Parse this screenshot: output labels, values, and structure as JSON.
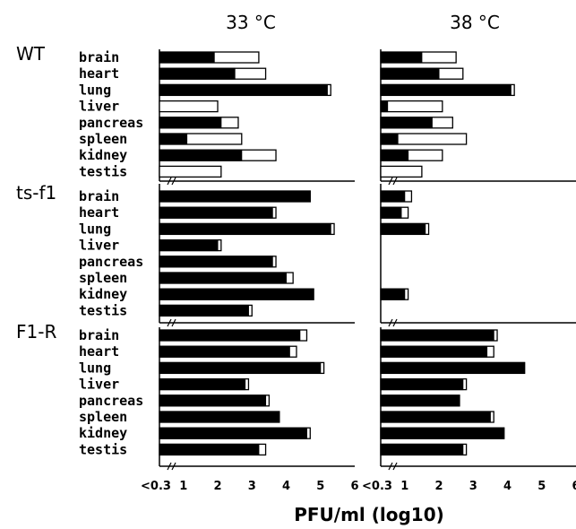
{
  "chart_data": {
    "type": "bar",
    "orientation": "horizontal",
    "xlabel": "PFU/ml (log10)",
    "x_min_label": "<0.3",
    "x_tick_labels": [
      "<0.3",
      "1",
      "2",
      "3",
      "4",
      "5",
      "6"
    ],
    "xlim": [
      0.3,
      6
    ],
    "axis_break": true,
    "conditions": [
      "33 °C",
      "38 °C"
    ],
    "categories": [
      "brain",
      "heart",
      "lung",
      "liver",
      "pancreas",
      "spleen",
      "kidney",
      "testis"
    ],
    "encoding": "each bar: black segment shows mean, white extension up to mean + error",
    "colors": {
      "mean": "#000000",
      "error": "#ffffff",
      "outline": "#000000"
    },
    "groups": [
      {
        "name": "WT",
        "panels": [
          {
            "condition": "33 °C",
            "mean": [
              1.9,
              2.5,
              5.2,
              0.3,
              2.1,
              1.1,
              2.7,
              0.3
            ],
            "upper": [
              3.2,
              3.4,
              5.3,
              2.0,
              2.6,
              2.7,
              3.7,
              2.1
            ]
          },
          {
            "condition": "38 °C",
            "mean": [
              1.5,
              2.0,
              4.1,
              0.5,
              1.8,
              0.8,
              1.1,
              0.3
            ],
            "upper": [
              2.5,
              2.7,
              4.2,
              2.1,
              2.4,
              2.8,
              2.1,
              1.5
            ]
          }
        ]
      },
      {
        "name": "ts-f1",
        "panels": [
          {
            "condition": "33 °C",
            "mean": [
              4.7,
              3.6,
              5.3,
              2.0,
              3.6,
              4.0,
              4.8,
              2.9
            ],
            "upper": [
              4.7,
              3.7,
              5.4,
              2.1,
              3.7,
              4.2,
              4.8,
              3.0
            ]
          },
          {
            "condition": "38 °C",
            "mean": [
              1.0,
              0.9,
              1.6,
              null,
              null,
              null,
              1.0,
              null
            ],
            "upper": [
              1.2,
              1.1,
              1.7,
              null,
              null,
              null,
              1.1,
              null
            ]
          }
        ]
      },
      {
        "name": "F1-R",
        "panels": [
          {
            "condition": "33 °C",
            "mean": [
              4.4,
              4.1,
              5.0,
              2.8,
              3.4,
              3.8,
              4.6,
              3.2
            ],
            "upper": [
              4.6,
              4.3,
              5.1,
              2.9,
              3.5,
              3.8,
              4.7,
              3.4
            ]
          },
          {
            "condition": "38 °C",
            "mean": [
              3.6,
              3.4,
              4.5,
              2.7,
              2.6,
              3.5,
              3.9,
              2.7
            ],
            "upper": [
              3.7,
              3.6,
              4.5,
              2.8,
              2.6,
              3.6,
              3.9,
              2.8
            ]
          }
        ]
      }
    ]
  }
}
